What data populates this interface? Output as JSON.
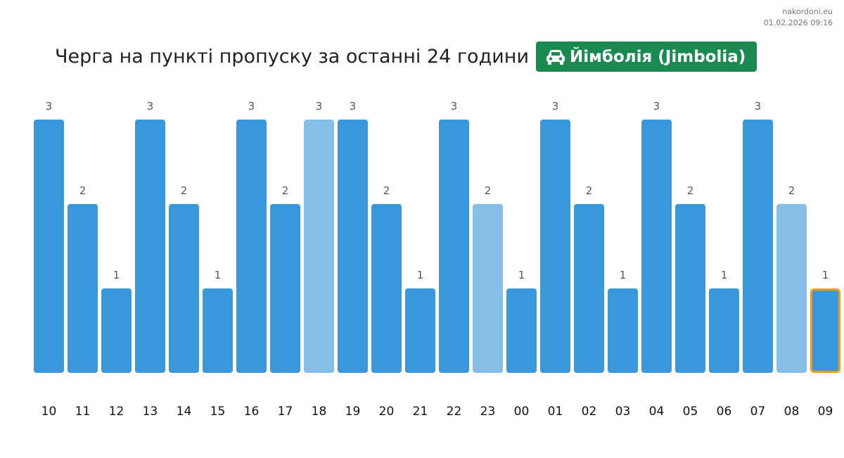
{
  "site": "nakordoni.eu",
  "timestamp": "01.02.2026 09:16",
  "title": "Черга на пункті пропуску за останні 24 години",
  "badge": {
    "icon": "car-icon",
    "label": "Йімболія (Jimbolia)"
  },
  "colors": {
    "bar": "#3898db",
    "bar_light": "#85bfe8",
    "highlight_border": "#f39c12",
    "badge_bg": "#1a8a50",
    "value_label": "#555555",
    "tick_label": "#111111"
  },
  "chart_data": {
    "type": "bar",
    "title": "Черга на пункті пропуску за останні 24 години",
    "categories": [
      "10",
      "11",
      "12",
      "13",
      "14",
      "15",
      "16",
      "17",
      "18",
      "19",
      "20",
      "21",
      "22",
      "23",
      "00",
      "01",
      "02",
      "03",
      "04",
      "05",
      "06",
      "07",
      "08",
      "09"
    ],
    "values": [
      3,
      2,
      1,
      3,
      2,
      1,
      3,
      2,
      3,
      3,
      2,
      1,
      3,
      2,
      1,
      3,
      2,
      1,
      3,
      2,
      1,
      3,
      2,
      1
    ],
    "light_bars": [
      "18",
      "23",
      "08"
    ],
    "highlighted": "09",
    "ylim": [
      0,
      3
    ],
    "grid": false,
    "legend": "none"
  }
}
